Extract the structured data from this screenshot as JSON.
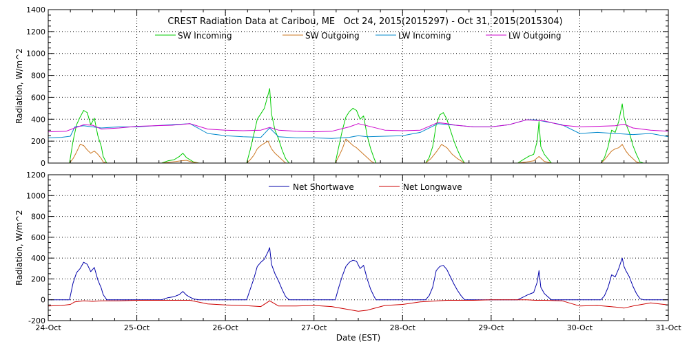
{
  "chart_data": [
    {
      "type": "line",
      "title": "CREST Radiation Data at Caribou, ME   Oct 24, 2015(2015297) - Oct 31, 2015(2015304)",
      "ylabel": "Radiation, W/m^2",
      "xlabel": "",
      "xlim": [
        0,
        7
      ],
      "ylim": [
        0,
        1400
      ],
      "yticks": [
        "0",
        "200",
        "400",
        "600",
        "800",
        "1000",
        "1200",
        "1400"
      ],
      "grid": true,
      "legend_position": "top",
      "series": [
        {
          "name": "SW Incoming",
          "color": "#00cc00",
          "x": [
            0.0,
            0.24,
            0.28,
            0.32,
            0.36,
            0.4,
            0.44,
            0.48,
            0.52,
            0.56,
            0.6,
            0.62,
            0.66,
            1.0,
            1.28,
            1.35,
            1.42,
            1.48,
            1.52,
            1.56,
            1.6,
            1.64,
            1.7,
            2.0,
            2.24,
            2.28,
            2.32,
            2.36,
            2.4,
            2.44,
            2.48,
            2.5,
            2.52,
            2.56,
            2.6,
            2.64,
            2.68,
            2.72,
            3.0,
            3.24,
            3.28,
            3.32,
            3.36,
            3.4,
            3.44,
            3.48,
            3.52,
            3.56,
            3.6,
            3.64,
            3.68,
            3.7,
            4.0,
            4.26,
            4.3,
            4.34,
            4.38,
            4.42,
            4.46,
            4.5,
            4.54,
            4.58,
            4.62,
            4.66,
            4.7,
            5.0,
            5.3,
            5.36,
            5.42,
            5.48,
            5.52,
            5.54,
            5.56,
            5.6,
            5.64,
            5.68,
            6.0,
            6.24,
            6.28,
            6.32,
            6.36,
            6.4,
            6.44,
            6.48,
            6.5,
            6.52,
            6.56,
            6.6,
            6.64,
            6.68,
            6.72,
            7.0
          ],
          "y": [
            0,
            0,
            200,
            350,
            420,
            480,
            460,
            350,
            410,
            250,
            150,
            60,
            0,
            0,
            0,
            20,
            30,
            60,
            90,
            50,
            30,
            10,
            0,
            0,
            0,
            120,
            260,
            400,
            450,
            500,
            620,
            680,
            450,
            300,
            220,
            120,
            40,
            0,
            0,
            0,
            150,
            300,
            420,
            470,
            500,
            480,
            400,
            430,
            250,
            130,
            40,
            0,
            0,
            0,
            50,
            150,
            350,
            440,
            460,
            400,
            300,
            200,
            120,
            50,
            0,
            0,
            0,
            30,
            60,
            80,
            200,
            380,
            150,
            80,
            40,
            0,
            0,
            0,
            50,
            150,
            300,
            280,
            380,
            540,
            420,
            360,
            280,
            160,
            80,
            10,
            0,
            0
          ]
        },
        {
          "name": "SW Outgoing",
          "color": "#cc7722",
          "x": [
            0.0,
            0.24,
            0.28,
            0.32,
            0.36,
            0.4,
            0.44,
            0.48,
            0.52,
            0.56,
            0.6,
            0.62,
            0.66,
            1.0,
            1.28,
            1.4,
            1.5,
            1.56,
            1.62,
            1.7,
            2.0,
            2.24,
            2.28,
            2.32,
            2.36,
            2.4,
            2.44,
            2.48,
            2.52,
            2.56,
            2.6,
            2.64,
            2.68,
            3.0,
            3.24,
            3.28,
            3.32,
            3.36,
            3.4,
            3.44,
            3.48,
            3.52,
            3.56,
            3.6,
            3.64,
            3.68,
            4.0,
            4.26,
            4.32,
            4.38,
            4.44,
            4.5,
            4.56,
            4.62,
            4.66,
            4.7,
            5.0,
            5.3,
            5.4,
            5.48,
            5.54,
            5.6,
            5.68,
            6.0,
            6.24,
            6.28,
            6.32,
            6.36,
            6.4,
            6.44,
            6.48,
            6.52,
            6.56,
            6.6,
            6.64,
            6.68,
            7.0
          ],
          "y": [
            0,
            0,
            40,
            100,
            170,
            160,
            120,
            90,
            110,
            80,
            40,
            10,
            0,
            0,
            0,
            10,
            20,
            25,
            10,
            0,
            0,
            0,
            30,
            70,
            130,
            160,
            180,
            200,
            130,
            90,
            60,
            30,
            0,
            0,
            0,
            60,
            130,
            220,
            190,
            160,
            140,
            110,
            80,
            50,
            20,
            0,
            0,
            0,
            40,
            100,
            170,
            140,
            80,
            40,
            20,
            0,
            0,
            0,
            10,
            20,
            60,
            15,
            0,
            0,
            0,
            30,
            70,
            110,
            130,
            140,
            170,
            110,
            70,
            40,
            10,
            0,
            0
          ]
        },
        {
          "name": "LW Incoming",
          "color": "#0088cc",
          "x": [
            0.0,
            0.15,
            0.25,
            0.3,
            0.4,
            0.5,
            0.6,
            0.8,
            1.0,
            1.3,
            1.6,
            1.8,
            2.0,
            2.2,
            2.4,
            2.5,
            2.6,
            2.8,
            3.0,
            3.2,
            3.4,
            3.5,
            3.6,
            3.8,
            4.0,
            4.2,
            4.4,
            4.6,
            4.8,
            5.0,
            5.2,
            5.4,
            5.5,
            5.6,
            5.8,
            6.0,
            6.2,
            6.4,
            6.6,
            6.8,
            7.0
          ],
          "y": [
            230,
            235,
            245,
            330,
            340,
            330,
            320,
            330,
            330,
            345,
            360,
            270,
            250,
            240,
            235,
            320,
            240,
            230,
            230,
            225,
            235,
            250,
            240,
            245,
            250,
            280,
            360,
            345,
            330,
            330,
            350,
            395,
            395,
            380,
            350,
            270,
            280,
            270,
            260,
            270,
            240
          ]
        },
        {
          "name": "LW Outgoing",
          "color": "#cc00cc",
          "x": [
            0.0,
            0.2,
            0.3,
            0.4,
            0.5,
            0.6,
            0.8,
            1.0,
            1.2,
            1.4,
            1.6,
            1.8,
            2.0,
            2.2,
            2.4,
            2.5,
            2.6,
            2.8,
            3.0,
            3.2,
            3.4,
            3.5,
            3.6,
            3.8,
            4.0,
            4.2,
            4.4,
            4.5,
            4.6,
            4.8,
            5.0,
            5.2,
            5.4,
            5.6,
            5.8,
            6.0,
            6.2,
            6.4,
            6.5,
            6.6,
            6.8,
            7.0
          ],
          "y": [
            285,
            290,
            320,
            350,
            345,
            310,
            320,
            335,
            340,
            345,
            360,
            310,
            300,
            295,
            300,
            325,
            300,
            290,
            285,
            290,
            330,
            360,
            340,
            300,
            295,
            300,
            370,
            360,
            345,
            330,
            330,
            350,
            395,
            385,
            345,
            330,
            335,
            340,
            355,
            320,
            300,
            290
          ]
        }
      ]
    },
    {
      "type": "line",
      "title": "",
      "ylabel": "Radiation, W/m^2",
      "xlabel": "Date (EST)",
      "xlim": [
        0,
        7
      ],
      "ylim": [
        -200,
        1200
      ],
      "yticks": [
        "-200",
        "0",
        "200",
        "400",
        "600",
        "800",
        "1000",
        "1200"
      ],
      "xticks": [
        "24-Oct",
        "25-Oct",
        "26-Oct",
        "27-Oct",
        "28-Oct",
        "29-Oct",
        "30-Oct",
        "31-Oct"
      ],
      "grid": true,
      "legend_position": "top",
      "series": [
        {
          "name": "Net Shortwave",
          "color": "#0000aa",
          "x": [
            0.0,
            0.24,
            0.28,
            0.32,
            0.36,
            0.4,
            0.44,
            0.48,
            0.52,
            0.56,
            0.6,
            0.62,
            0.66,
            1.0,
            1.28,
            1.35,
            1.42,
            1.48,
            1.52,
            1.56,
            1.6,
            1.64,
            1.7,
            2.0,
            2.24,
            2.28,
            2.32,
            2.36,
            2.4,
            2.44,
            2.48,
            2.5,
            2.52,
            2.56,
            2.6,
            2.64,
            2.68,
            2.72,
            3.0,
            3.24,
            3.28,
            3.32,
            3.36,
            3.4,
            3.44,
            3.48,
            3.52,
            3.56,
            3.6,
            3.64,
            3.68,
            3.7,
            4.0,
            4.26,
            4.3,
            4.34,
            4.38,
            4.42,
            4.46,
            4.5,
            4.54,
            4.58,
            4.62,
            4.66,
            4.7,
            5.0,
            5.3,
            5.36,
            5.42,
            5.48,
            5.52,
            5.54,
            5.56,
            5.6,
            5.64,
            5.68,
            6.0,
            6.24,
            6.28,
            6.32,
            6.36,
            6.4,
            6.44,
            6.48,
            6.5,
            6.52,
            6.56,
            6.6,
            6.64,
            6.68,
            6.72,
            7.0
          ],
          "y": [
            0,
            0,
            160,
            260,
            300,
            360,
            340,
            270,
            310,
            190,
            110,
            50,
            0,
            0,
            0,
            20,
            30,
            50,
            80,
            45,
            25,
            8,
            0,
            0,
            0,
            100,
            200,
            320,
            360,
            390,
            460,
            500,
            340,
            250,
            180,
            100,
            30,
            0,
            0,
            0,
            120,
            230,
            320,
            360,
            380,
            370,
            300,
            330,
            200,
            100,
            30,
            0,
            0,
            0,
            40,
            120,
            280,
            320,
            330,
            290,
            220,
            150,
            90,
            40,
            0,
            0,
            0,
            25,
            50,
            70,
            170,
            280,
            120,
            60,
            30,
            0,
            0,
            0,
            40,
            120,
            240,
            220,
            300,
            400,
            320,
            280,
            220,
            130,
            60,
            10,
            0,
            0
          ]
        },
        {
          "name": "Net Longwave",
          "color": "#cc0000",
          "x": [
            0.0,
            0.15,
            0.25,
            0.3,
            0.4,
            0.5,
            0.6,
            0.8,
            1.0,
            1.3,
            1.6,
            1.8,
            2.0,
            2.2,
            2.4,
            2.5,
            2.6,
            2.8,
            3.0,
            3.2,
            3.4,
            3.5,
            3.6,
            3.8,
            4.0,
            4.2,
            4.4,
            4.5,
            4.6,
            4.8,
            5.0,
            5.2,
            5.4,
            5.5,
            5.6,
            5.8,
            6.0,
            6.2,
            6.4,
            6.5,
            6.6,
            6.8,
            7.0
          ],
          "y": [
            -60,
            -55,
            -45,
            -20,
            -10,
            -15,
            -10,
            -10,
            -5,
            -5,
            -5,
            -40,
            -50,
            -55,
            -65,
            -10,
            -60,
            -60,
            -55,
            -65,
            -95,
            -110,
            -100,
            -55,
            -45,
            -20,
            -10,
            -5,
            -5,
            -5,
            0,
            0,
            0,
            -5,
            -5,
            -10,
            -60,
            -55,
            -70,
            -80,
            -60,
            -30,
            -50
          ]
        }
      ]
    }
  ]
}
